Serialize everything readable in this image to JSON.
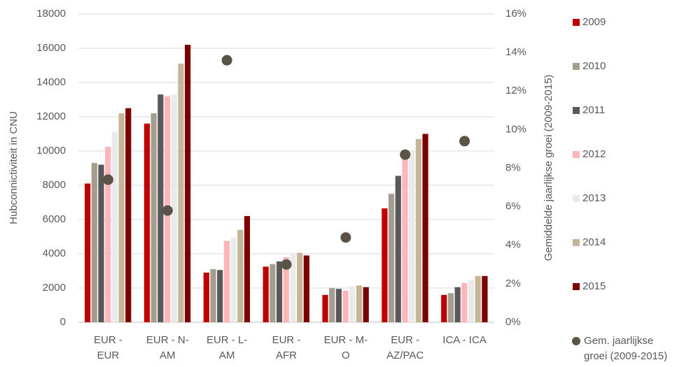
{
  "chart_data": {
    "type": "bar",
    "y_label": "Hubconnictiviteit in CNU",
    "y2_label": "Gemiddelde jaarlijkse groei (2009-2015)",
    "categories": [
      "EUR -\nEUR",
      "EUR - N-\nAM",
      "EUR - L-\nAM",
      "EUR -\nAFR",
      "EUR - M-\nO",
      "EUR -\nAZ/PAC",
      "ICA - ICA"
    ],
    "series": [
      {
        "name": "2009",
        "color": "#c00000",
        "values": [
          8100,
          11600,
          2900,
          3250,
          1600,
          6650,
          1600
        ]
      },
      {
        "name": "2010",
        "color": "#a59d8f",
        "values": [
          9300,
          12200,
          3100,
          3400,
          2000,
          7500,
          1700
        ]
      },
      {
        "name": "2011",
        "color": "#595959",
        "values": [
          9200,
          13300,
          3050,
          3550,
          1950,
          8550,
          2050
        ]
      },
      {
        "name": "2012",
        "color": "#ffb6b9",
        "values": [
          10250,
          13200,
          4750,
          3800,
          1850,
          9650,
          2300
        ]
      },
      {
        "name": "2013",
        "color": "#eaeaea",
        "values": [
          11100,
          13300,
          4950,
          3950,
          2100,
          10000,
          2450
        ]
      },
      {
        "name": "2014",
        "color": "#c4b797",
        "values": [
          12200,
          15100,
          5400,
          4050,
          2150,
          10700,
          2700
        ]
      },
      {
        "name": "2015",
        "color": "#7b0000",
        "values": [
          12500,
          16200,
          6200,
          3900,
          2050,
          11000,
          2700
        ]
      },
      {
        "name": "Gem. jaarlijkse\ngroei (2009-2015)",
        "type": "scatter",
        "axis": "y2",
        "color": "#5a5346",
        "values": [
          7.4,
          5.8,
          13.6,
          3.0,
          4.4,
          8.7,
          9.4
        ]
      }
    ],
    "ylim": [
      0,
      18000
    ],
    "yticks": [
      0,
      2000,
      4000,
      6000,
      8000,
      10000,
      12000,
      14000,
      16000,
      18000
    ],
    "y2lim": [
      0,
      16
    ],
    "y2ticks": [
      {
        "value": 0,
        "label": "0%"
      },
      {
        "value": 2,
        "label": "2%"
      },
      {
        "value": 4,
        "label": "4%"
      },
      {
        "value": 6,
        "label": "6%"
      },
      {
        "value": 8,
        "label": "8%"
      },
      {
        "value": 10,
        "label": "10%"
      },
      {
        "value": 12,
        "label": "12%"
      },
      {
        "value": 14,
        "label": "14%"
      },
      {
        "value": 16,
        "label": "16%"
      }
    ],
    "grid": true,
    "legend": "right"
  }
}
